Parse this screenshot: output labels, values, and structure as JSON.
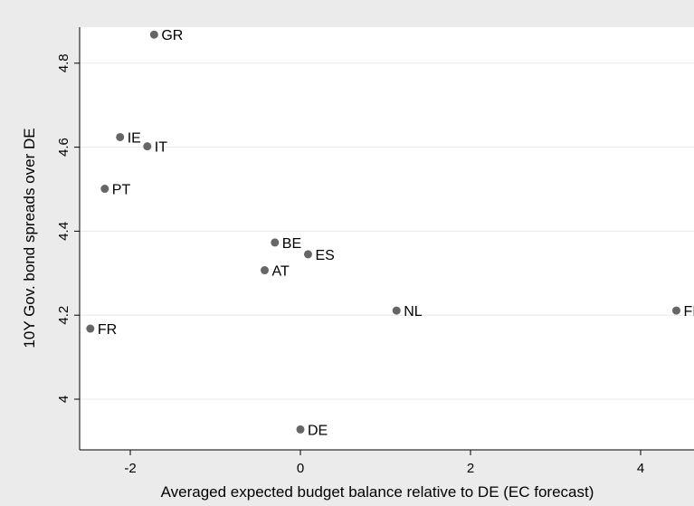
{
  "chart_data": {
    "type": "scatter",
    "xlabel": "Averaged expected budget balance relative to DE (EC forecast)",
    "ylabel": "10Y Gov. bond spreads over DE",
    "xlim": [
      -2.6,
      4.5
    ],
    "ylim": [
      3.92,
      4.87
    ],
    "x_ticks": [
      -2,
      0,
      2,
      4
    ],
    "y_ticks": [
      4,
      4.2,
      4.4,
      4.6,
      4.8
    ],
    "x_tick_labels": [
      "-2",
      "0",
      "2",
      "4"
    ],
    "y_tick_labels": [
      "4",
      "4.2",
      "4.4",
      "4.6",
      "4.8"
    ],
    "grid": "horizontal",
    "marker_color": "#666666",
    "points": [
      {
        "label": "GR",
        "x": -1.72,
        "y": 4.868
      },
      {
        "label": "IE",
        "x": -2.12,
        "y": 4.624
      },
      {
        "label": "IT",
        "x": -1.8,
        "y": 4.602
      },
      {
        "label": "PT",
        "x": -2.3,
        "y": 4.501
      },
      {
        "label": "BE",
        "x": -0.3,
        "y": 4.373
      },
      {
        "label": "ES",
        "x": 0.09,
        "y": 4.345
      },
      {
        "label": "AT",
        "x": -0.42,
        "y": 4.307
      },
      {
        "label": "NL",
        "x": 1.13,
        "y": 4.211
      },
      {
        "label": "FI",
        "x": 4.42,
        "y": 4.211
      },
      {
        "label": "FR",
        "x": -2.47,
        "y": 4.168
      },
      {
        "label": "DE",
        "x": 0.0,
        "y": 3.928
      }
    ]
  }
}
